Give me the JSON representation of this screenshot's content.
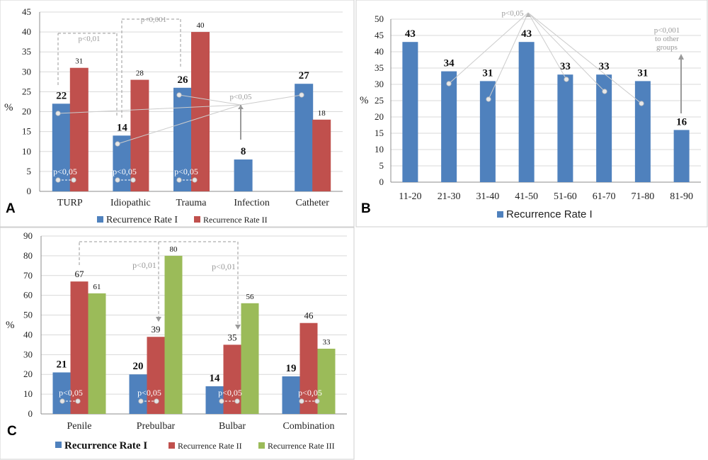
{
  "colors": {
    "blue": "#4f81bd",
    "red": "#c0504d",
    "green": "#9bbb59",
    "grid": "#d9d9d9",
    "annotation": "#9a9a9a"
  },
  "chart_data": [
    {
      "panel": "A",
      "type": "bar",
      "categories": [
        "TURP",
        "Idiopathic",
        "Trauma",
        "Infection",
        "Catheter"
      ],
      "series": [
        {
          "name": "Recurrence Rate I",
          "values": [
            22,
            14,
            26,
            8,
            27
          ]
        },
        {
          "name": "Recurrence Rate II",
          "values": [
            31,
            28,
            40,
            null,
            18
          ]
        }
      ],
      "data_labels": {
        "Recurrence Rate I": [
          "22",
          "14",
          "26",
          "8",
          "27"
        ],
        "Recurrence Rate II": [
          "31",
          "28",
          "40",
          "",
          "18"
        ]
      },
      "ylabel": "%",
      "ylim": [
        0,
        45
      ],
      "yticks": [
        "0",
        "5",
        "10",
        "15",
        "20",
        "25",
        "30",
        "35",
        "40",
        "45"
      ],
      "grid": true,
      "legend": "bottom",
      "annotations": [
        "p<0,01",
        "p<0,001",
        "p<0,05",
        "p<0,05",
        "p<0,05",
        "p<0,05"
      ]
    },
    {
      "panel": "B",
      "type": "bar",
      "categories": [
        "11-20",
        "21-30",
        "31-40",
        "41-50",
        "51-60",
        "61-70",
        "71-80",
        "81-90"
      ],
      "series": [
        {
          "name": "Recurrence Rate I",
          "values": [
            43,
            34,
            31,
            43,
            33,
            33,
            31,
            16
          ]
        }
      ],
      "data_labels": {
        "Recurrence Rate I": [
          "43",
          "34",
          "31",
          "43",
          "33",
          "33",
          "31",
          "16"
        ]
      },
      "ylabel": "%",
      "ylim": [
        0,
        50
      ],
      "yticks": [
        "0",
        "5",
        "10",
        "15",
        "20",
        "25",
        "30",
        "35",
        "40",
        "45",
        "50"
      ],
      "grid": true,
      "legend": "bottom",
      "annotations": [
        "p<0,05",
        "p<0,001",
        "to other",
        "groups"
      ]
    },
    {
      "panel": "C",
      "type": "bar",
      "categories": [
        "Penile",
        "Prebulbar",
        "Bulbar",
        "Combination"
      ],
      "series": [
        {
          "name": "Recurrence Rate I",
          "values": [
            21,
            20,
            14,
            19
          ]
        },
        {
          "name": "Recurrence Rate II",
          "values": [
            67,
            39,
            35,
            46
          ]
        },
        {
          "name": "Recurrence Rate III",
          "values": [
            61,
            80,
            56,
            33
          ]
        }
      ],
      "data_labels": {
        "Recurrence Rate I": [
          "21",
          "20",
          "14",
          "19"
        ],
        "Recurrence Rate II": [
          "67",
          "39",
          "35",
          "46"
        ],
        "Recurrence Rate III": [
          "61",
          "80",
          "56",
          "33"
        ]
      },
      "ylabel": "%",
      "ylim": [
        0,
        90
      ],
      "yticks": [
        "0",
        "10",
        "20",
        "30",
        "40",
        "50",
        "60",
        "70",
        "80",
        "90"
      ],
      "grid": true,
      "legend": "bottom",
      "annotations": [
        "p<0,01",
        "p<0,01",
        "p<0,05",
        "p<0,05",
        "p<0,05",
        "p<0,05"
      ]
    }
  ]
}
